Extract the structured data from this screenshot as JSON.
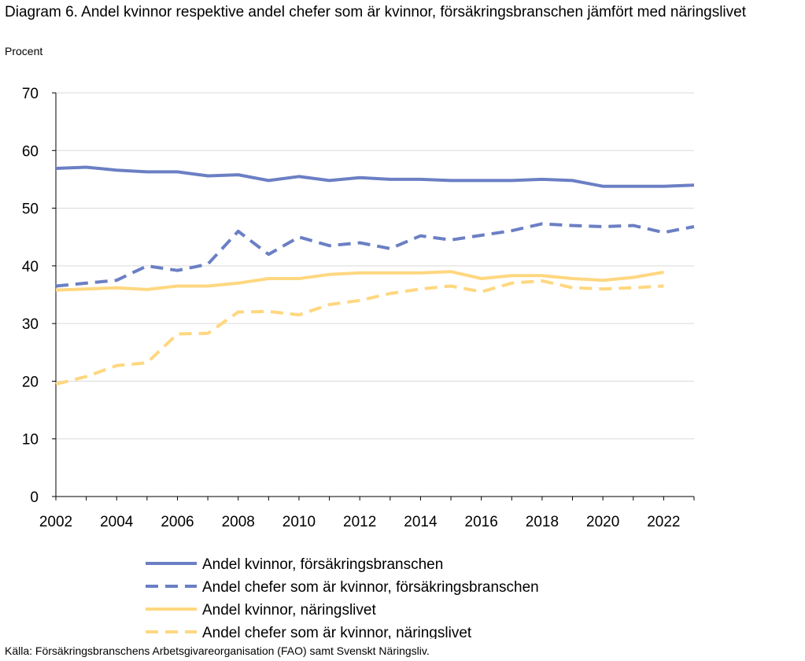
{
  "title": "Diagram 6. Andel kvinnor respektive andel chefer som är kvinnor, försäkringsbranschen jämfört med näringslivet",
  "subtitle": "Procent",
  "source": "Källa: Försäkringsbranschens Arbetsgivareorganisation (FAO) samt Svenskt Näringsliv.",
  "chart_data": {
    "type": "line",
    "x": [
      2002,
      2003,
      2004,
      2005,
      2006,
      2007,
      2008,
      2009,
      2010,
      2011,
      2012,
      2013,
      2014,
      2015,
      2016,
      2017,
      2018,
      2019,
      2020,
      2021,
      2022,
      2023
    ],
    "xlim": [
      2002,
      2023
    ],
    "ylim": [
      0,
      70
    ],
    "yticks": [
      0,
      10,
      20,
      30,
      40,
      50,
      60,
      70
    ],
    "xticks": [
      2002,
      2004,
      2006,
      2008,
      2010,
      2012,
      2014,
      2016,
      2018,
      2020,
      2022
    ],
    "grid": true,
    "legend_position": "bottom",
    "series": [
      {
        "name": "Andel kvinnor, försäkringsbranschen",
        "color": "#6B7FC4",
        "dash": "solid",
        "values": [
          56.9,
          57.1,
          56.6,
          56.3,
          56.3,
          55.6,
          55.8,
          54.8,
          55.5,
          54.8,
          55.3,
          55.0,
          55.0,
          54.8,
          54.8,
          54.8,
          55.0,
          54.8,
          53.8,
          53.8,
          53.8,
          54.0
        ]
      },
      {
        "name": "Andel chefer som är kvinnor, försäkringsbranschen",
        "color": "#6B7FC4",
        "dash": "dashed",
        "values": [
          36.5,
          37.0,
          37.5,
          40.0,
          39.2,
          40.3,
          46.0,
          42.0,
          45.0,
          43.5,
          44.0,
          43.0,
          45.2,
          44.5,
          45.3,
          46.1,
          47.3,
          47.0,
          46.8,
          47.0,
          45.8,
          46.8
        ]
      },
      {
        "name": "Andel kvinnor, näringslivet",
        "color": "#FFD780",
        "dash": "solid",
        "values": [
          35.8,
          36.0,
          36.2,
          35.9,
          36.5,
          36.5,
          37.0,
          37.8,
          37.8,
          38.5,
          38.8,
          38.8,
          38.8,
          39.0,
          37.8,
          38.3,
          38.3,
          37.8,
          37.5,
          38.0,
          38.9,
          null
        ]
      },
      {
        "name": "Andel chefer som är kvinnor, näringslivet",
        "color": "#FFD780",
        "dash": "dashed",
        "values": [
          19.5,
          20.8,
          22.7,
          23.2,
          28.2,
          28.3,
          32.0,
          32.1,
          31.5,
          33.3,
          34.0,
          35.2,
          36.0,
          36.5,
          35.5,
          37.0,
          37.4,
          36.2,
          36.0,
          36.2,
          36.5,
          null
        ]
      }
    ]
  }
}
